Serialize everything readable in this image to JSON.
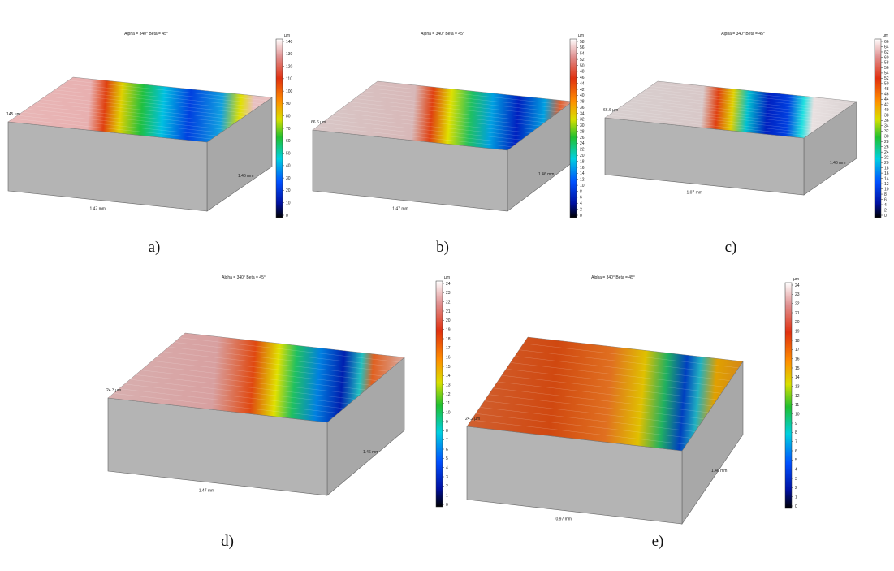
{
  "panels": [
    {
      "caption": "a)",
      "header": "Alpha = 340°    Beta = 45°",
      "height_label": "145 µm",
      "x_label": "1.47 mm",
      "y_label": "1.46 mm",
      "unit": "µm",
      "colorbar_ticks": [
        0,
        10,
        20,
        30,
        40,
        50,
        60,
        70,
        80,
        90,
        100,
        110,
        120,
        130,
        140
      ]
    },
    {
      "caption": "b)",
      "header": "Alpha = 340°    Beta = 45°",
      "height_label": "66.6 µm",
      "x_label": "1.47 mm",
      "y_label": "1.46 mm",
      "unit": "µm",
      "colorbar_ticks": [
        0,
        2,
        4,
        6,
        8,
        10,
        12,
        14,
        16,
        18,
        20,
        22,
        24,
        26,
        28,
        30,
        32,
        34,
        36,
        38,
        40,
        42,
        44,
        46,
        48,
        50,
        52,
        54,
        56,
        58
      ]
    },
    {
      "caption": "c)",
      "header": "Alpha = 340°    Beta = 45°",
      "height_label": "66.6 µm",
      "x_label": "1.07 mm",
      "y_label": "1.46 mm",
      "unit": "µm",
      "colorbar_ticks": [
        0,
        2,
        4,
        6,
        8,
        10,
        12,
        14,
        16,
        18,
        20,
        22,
        24,
        26,
        28,
        30,
        32,
        34,
        36,
        38,
        40,
        42,
        44,
        46,
        48,
        50,
        52,
        54,
        56,
        58,
        60,
        62,
        64,
        66
      ]
    },
    {
      "caption": "d)",
      "header": "Alpha = 340°    Beta = 45°",
      "height_label": "24.3 µm",
      "x_label": "1.47 mm",
      "y_label": "1.46 mm",
      "unit": "µm",
      "colorbar_ticks": [
        0,
        1,
        2,
        3,
        4,
        5,
        6,
        7,
        8,
        9,
        10,
        11,
        12,
        13,
        14,
        15,
        16,
        17,
        18,
        19,
        20,
        21,
        22,
        23,
        24
      ]
    },
    {
      "caption": "e)",
      "header": "Alpha = 340°    Beta = 45°",
      "height_label": "24.2 µm",
      "x_label": "0.97 mm",
      "y_label": "1.46 mm",
      "unit": "µm",
      "colorbar_ticks": [
        0,
        1,
        2,
        3,
        4,
        5,
        6,
        7,
        8,
        9,
        10,
        11,
        12,
        13,
        14,
        15,
        16,
        17,
        18,
        19,
        20,
        21,
        22,
        23,
        24
      ]
    }
  ]
}
